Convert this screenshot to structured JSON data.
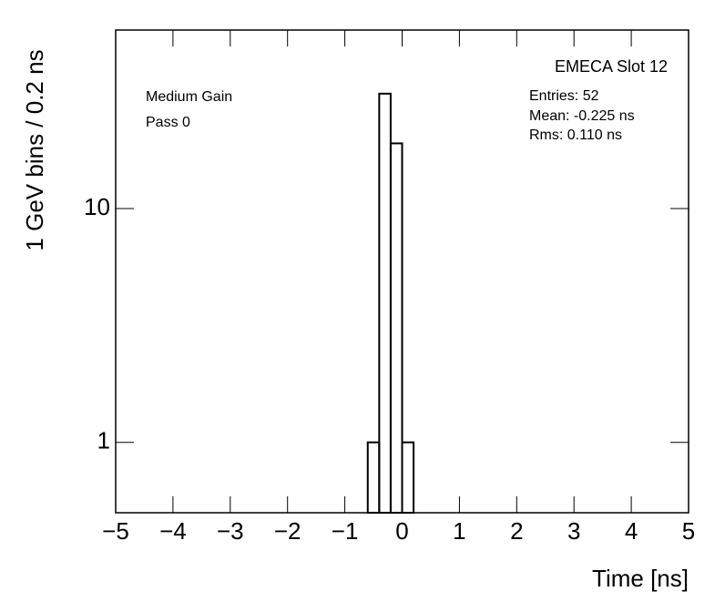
{
  "chart_data": {
    "type": "histogram",
    "title": "EMECA Slot 12",
    "stats": [
      "Entries: 52",
      "Mean: -0.225 ns",
      "Rms: 0.110 ns"
    ],
    "annotations": [
      "Medium Gain",
      "Pass 0"
    ],
    "x_label": "Time [ns]",
    "y_label": "1 GeV bins / 0.2 ns",
    "bins": [
      -0.6,
      -0.4,
      -0.2,
      0,
      0.2
    ],
    "values": [
      1,
      31,
      19,
      1
    ],
    "color": "#000000",
    "xlim": [
      -5,
      5
    ],
    "xticks": [
      {
        "value": -5,
        "label": "−5"
      },
      {
        "value": -4,
        "label": "−4"
      },
      {
        "value": -3,
        "label": "−3"
      },
      {
        "value": -2,
        "label": "−2"
      },
      {
        "value": -1,
        "label": "−1"
      },
      0,
      1,
      2,
      3,
      4,
      5
    ],
    "ylim": [
      0.5,
      58
    ],
    "yticks": [
      1,
      10
    ],
    "log_y": true
  }
}
